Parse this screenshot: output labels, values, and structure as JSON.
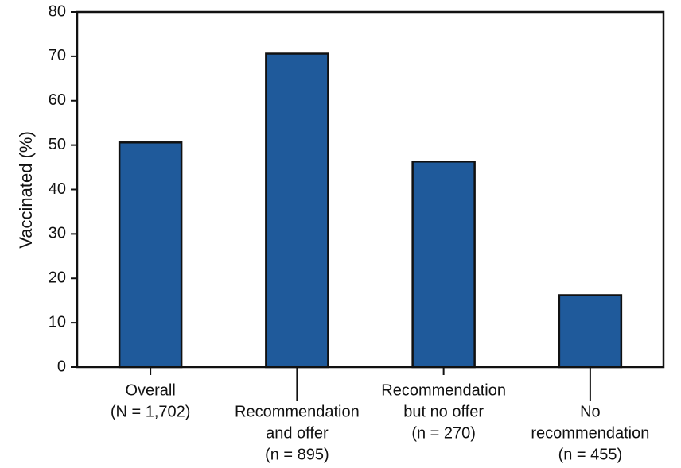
{
  "chart_data": {
    "type": "bar",
    "title": "",
    "xlabel": "",
    "ylabel": "Vaccinated (%)",
    "ylim": [
      0,
      80
    ],
    "yticks": [
      0,
      10,
      20,
      30,
      40,
      50,
      60,
      70,
      80
    ],
    "grid": false,
    "legend": "none",
    "bar_color": "#1F5A9B",
    "bar_outline_color": "#111111",
    "categories": [
      [
        "Overall",
        "(N = 1,702)"
      ],
      [
        "Recommendation",
        "and offer",
        "(n = 895)"
      ],
      [
        "Recommendation",
        "but no offer",
        "(n = 270)"
      ],
      [
        "No",
        "recommendation",
        "(n = 455)"
      ]
    ],
    "values": [
      50.6,
      70.6,
      46.3,
      16.2
    ]
  }
}
